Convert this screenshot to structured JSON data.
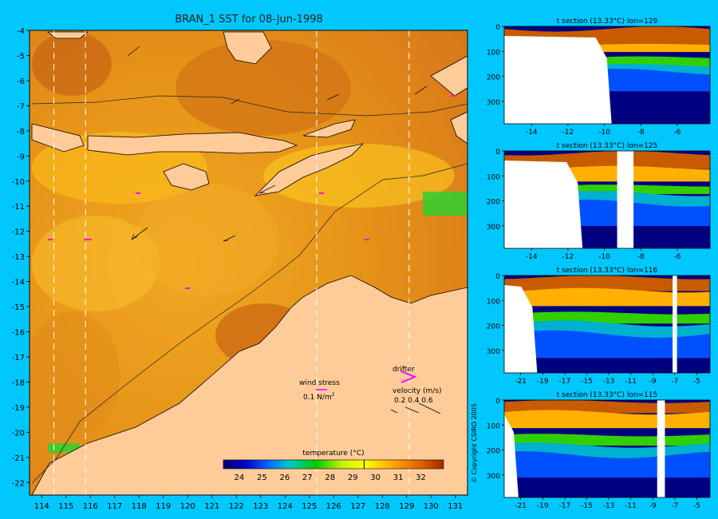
{
  "colors": {
    "background": "#00c8ff",
    "land": "#ffcc99",
    "sst_warm": "#c8500a",
    "sst_mid": "#f0a020",
    "sst_cool": "#ffd700",
    "drifter": "#ff00ff",
    "no_data": "#ffffff"
  },
  "main_map": {
    "title": "BRAN_1 SST for 08-Jun-1998",
    "xlim": [
      113.5,
      131.5
    ],
    "ylim": [
      -22.5,
      -4
    ],
    "x_ticks": [
      "114",
      "115",
      "116",
      "117",
      "118",
      "119",
      "120",
      "121",
      "122",
      "123",
      "124",
      "125",
      "126",
      "127",
      "128",
      "129",
      "130",
      "131"
    ],
    "y_ticks": [
      "-4",
      "-5",
      "-6",
      "-7",
      "-8",
      "-9",
      "-10",
      "-11",
      "-12",
      "-13",
      "-14",
      "-15",
      "-16",
      "-17",
      "-18",
      "-19",
      "-20",
      "-21",
      "-22"
    ],
    "section_lons": [
      114.5,
      115.8,
      125.3,
      129.1
    ],
    "legend": {
      "wind_label": "wind stress",
      "wind_scale": "0.1 N/m",
      "wind_sup": "2",
      "drifter_label": "drifter",
      "velocity_label": "velocity (m/s)",
      "velocity_scale": "0.2 0.4 0.6"
    },
    "colorbar": {
      "title": "temperature (°C)",
      "ticks": [
        "24",
        "25",
        "26",
        "27",
        "28",
        "29",
        "30",
        "31",
        "32"
      ],
      "range": [
        23.3,
        33.0
      ],
      "marker_value": 29.5
    }
  },
  "chart_data": [
    {
      "type": "heatmap",
      "title": "t section (13.33°C) lon=129",
      "x_ticks": [
        "-14",
        "-12",
        "-10",
        "-8",
        "-6"
      ],
      "xlim": [
        -15.5,
        -4.2
      ],
      "y_ticks": [
        "0",
        "100",
        "200",
        "300"
      ],
      "ylim": [
        0,
        390
      ],
      "mixed_layer_depth": [
        70,
        90
      ],
      "thermocline_depth": [
        150,
        190
      ],
      "land_boundary_lat": -9.6,
      "coast_depth_profile": [
        50,
        80,
        100,
        150,
        300,
        390
      ]
    },
    {
      "type": "heatmap",
      "title": "t section (13.33°C) lon=125",
      "x_ticks": [
        "-14",
        "-12",
        "-10",
        "-8",
        "-6"
      ],
      "xlim": [
        -15.5,
        -4.2
      ],
      "y_ticks": [
        "0",
        "100",
        "200",
        "300"
      ],
      "ylim": [
        0,
        390
      ],
      "mixed_layer_depth": [
        60,
        110
      ],
      "thermocline_depth": [
        160,
        230
      ],
      "land_boundary_lat": -11.2,
      "gap_lat": [
        -9.3,
        -8.4
      ]
    },
    {
      "type": "heatmap",
      "title": "t section (13.33°C) lon=116",
      "x_ticks": [
        "-21",
        "-19",
        "-17",
        "-15",
        "-13",
        "-11",
        "-9",
        "-7",
        "-5"
      ],
      "xlim": [
        -22.5,
        -3.8
      ],
      "y_ticks": [
        "0",
        "100",
        "200",
        "300"
      ],
      "ylim": [
        0,
        390
      ],
      "mixed_layer_depth": [
        50,
        110
      ],
      "thermocline_depth": [
        180,
        260
      ],
      "land_boundary_lat": -19.5,
      "gap_lat": [
        -7.2,
        -6.8
      ]
    },
    {
      "type": "heatmap",
      "title": "t section (13.33°C) lon=115",
      "x_ticks": [
        "-21",
        "-19",
        "-17",
        "-15",
        "-13",
        "-11",
        "-9",
        "-7",
        "-5"
      ],
      "xlim": [
        -22.5,
        -3.8
      ],
      "y_ticks": [
        "0",
        "100",
        "200",
        "300"
      ],
      "ylim": [
        0,
        390
      ],
      "mixed_layer_depth": [
        40,
        100
      ],
      "thermocline_depth": [
        170,
        240
      ],
      "land_boundary_lat": -21.2,
      "gap_lat": [
        -8.6,
        -7.9
      ]
    }
  ],
  "copyright": "© Copyright CSIRO 2005"
}
